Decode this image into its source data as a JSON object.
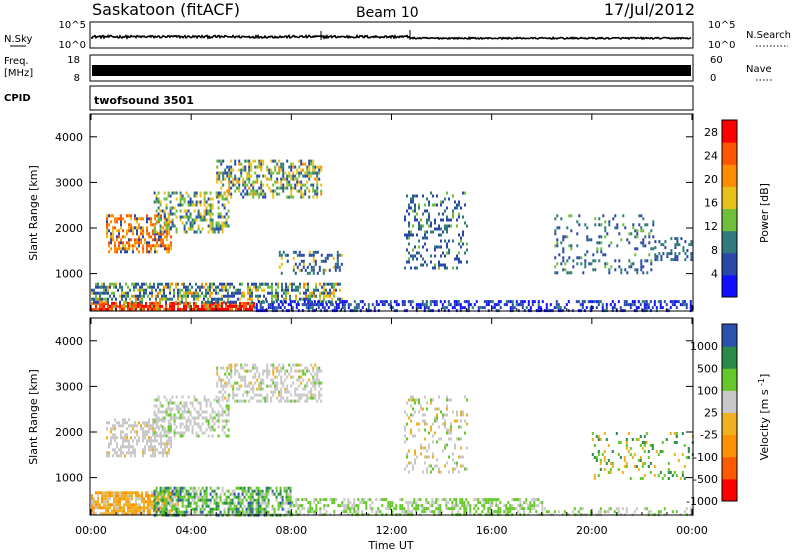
{
  "header": {
    "station": "Saskatoon (fitACF)",
    "beam": "Beam 10",
    "date": "17/Jul/2012"
  },
  "strips": {
    "nsky_label": "N.Sky",
    "nsky_ticks": [
      "10^5",
      "10^0"
    ],
    "nsearch_label": "N.Search",
    "nsearch_ticks": [
      "10^5",
      "10^0"
    ],
    "freq_label_1": "Freq.",
    "freq_label_2": "[MHz]",
    "freq_ticks": [
      "18",
      "8"
    ],
    "nave_label": "Nave",
    "nave_ticks": [
      "60",
      "0"
    ],
    "cpid_label": "CPID",
    "cpid_value": "twofsound 3501"
  },
  "colors": {
    "power": [
      "#1010ff",
      "#2a48a8",
      "#2f7b7b",
      "#6fbf3a",
      "#e8c21a",
      "#ff8c00",
      "#ff5500",
      "#ff0000"
    ],
    "velocity": [
      "#ff0000",
      "#ff5a00",
      "#ff9000",
      "#f0b020",
      "#c8c8c8",
      "#66c828",
      "#2a8a4a",
      "#2a50b0"
    ]
  },
  "chart_data": [
    {
      "type": "heatmap",
      "panel": "power",
      "ylabel": "Slant Range [km]",
      "xlabel": "",
      "x_ticks": [
        "00:00",
        "04:00",
        "08:00",
        "12:00",
        "16:00",
        "20:00",
        "00:00"
      ],
      "y_ticks": [
        1000,
        2000,
        3000,
        4000
      ],
      "ylim": [
        180,
        4500
      ],
      "xlim_hours": [
        0,
        24
      ],
      "colorbar": {
        "label": "Power [dB]",
        "ticks": [
          4,
          8,
          12,
          16,
          20,
          24,
          28
        ],
        "range": [
          0,
          30
        ]
      }
    },
    {
      "type": "heatmap",
      "panel": "velocity",
      "ylabel": "Slant Range [km]",
      "xlabel": "Time UT",
      "x_ticks": [
        "00:00",
        "04:00",
        "08:00",
        "12:00",
        "16:00",
        "20:00",
        "00:00"
      ],
      "y_ticks": [
        1000,
        2000,
        3000,
        4000
      ],
      "ylim": [
        180,
        4500
      ],
      "xlim_hours": [
        0,
        24
      ],
      "colorbar": {
        "label": "Velocity [m s^-1]",
        "ticks": [
          1000,
          500,
          100,
          25,
          -25,
          -100,
          -500,
          -1000
        ]
      }
    }
  ]
}
